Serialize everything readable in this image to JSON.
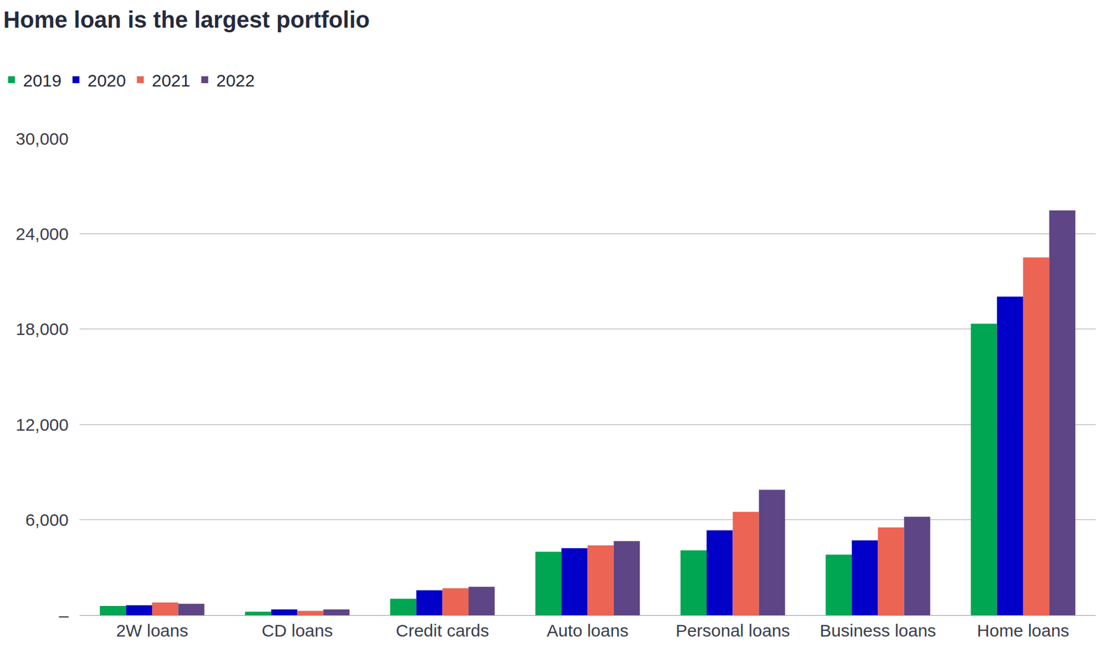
{
  "chart_data": {
    "type": "bar",
    "title": "Home loan is the largest portfolio",
    "categories": [
      "2W loans",
      "CD loans",
      "Credit cards",
      "Auto loans",
      "Personal loans",
      "Business loans",
      "Home loans"
    ],
    "series": [
      {
        "name": "2019",
        "color": "#00a651",
        "values": [
          580,
          220,
          1030,
          3990,
          4080,
          3810,
          18340
        ]
      },
      {
        "name": "2020",
        "color": "#0000c8",
        "values": [
          630,
          360,
          1570,
          4220,
          5340,
          4710,
          20040
        ]
      },
      {
        "name": "2021",
        "color": "#ec6453",
        "values": [
          800,
          270,
          1700,
          4390,
          6500,
          5520,
          22510
        ]
      },
      {
        "name": "2022",
        "color": "#5e4585",
        "values": [
          720,
          360,
          1790,
          4660,
          7890,
          6190,
          25470
        ]
      }
    ],
    "ylim": [
      0,
      30000
    ],
    "yticks": [
      {
        "value": 0,
        "label": "–"
      },
      {
        "value": 6000,
        "label": "6,000"
      },
      {
        "value": 12000,
        "label": "12,000"
      },
      {
        "value": 18000,
        "label": "18,000"
      },
      {
        "value": 24000,
        "label": "24,000"
      },
      {
        "value": 30000,
        "label": "30,000"
      }
    ],
    "grid": true,
    "legend": "top-left"
  }
}
